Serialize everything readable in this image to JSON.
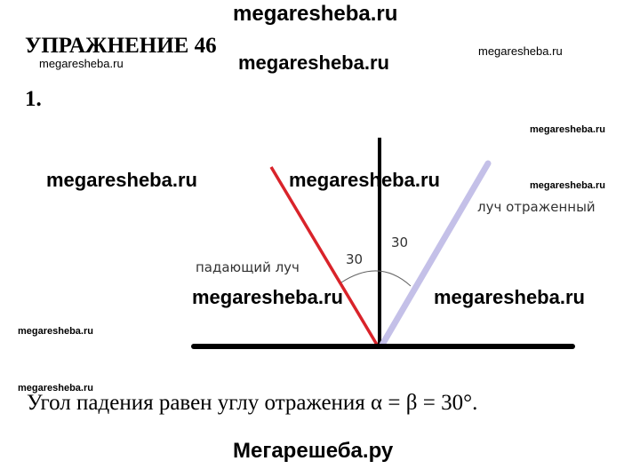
{
  "watermarks": {
    "top": "megaresheba.ru",
    "w1": "megaresheba.ru",
    "w2": "megaresheba.ru",
    "w3": "megaresheba.ru",
    "w4": "megaresheba.ru",
    "w5": "megaresheba.ru",
    "w6": "megaresheba.ru",
    "w7": "megaresheba.ru",
    "w8": "megaresheba.ru",
    "w9": "megaresheba.ru",
    "w10": "megaresheba.ru",
    "w11": "megaresheba.ru",
    "bottom": "Мегарешеба.ру"
  },
  "heading": "УПРАЖНЕНИЕ 46",
  "item_number": "1.",
  "diagram": {
    "incident_label": "падающий луч",
    "reflected_label": "луч отраженный",
    "angle_incidence": "30",
    "angle_reflection": "30",
    "incident_color": "#d9232a",
    "reflected_color": "#c4c0e8"
  },
  "answer": "Угол падения равен углу отражения α = β = 30°."
}
